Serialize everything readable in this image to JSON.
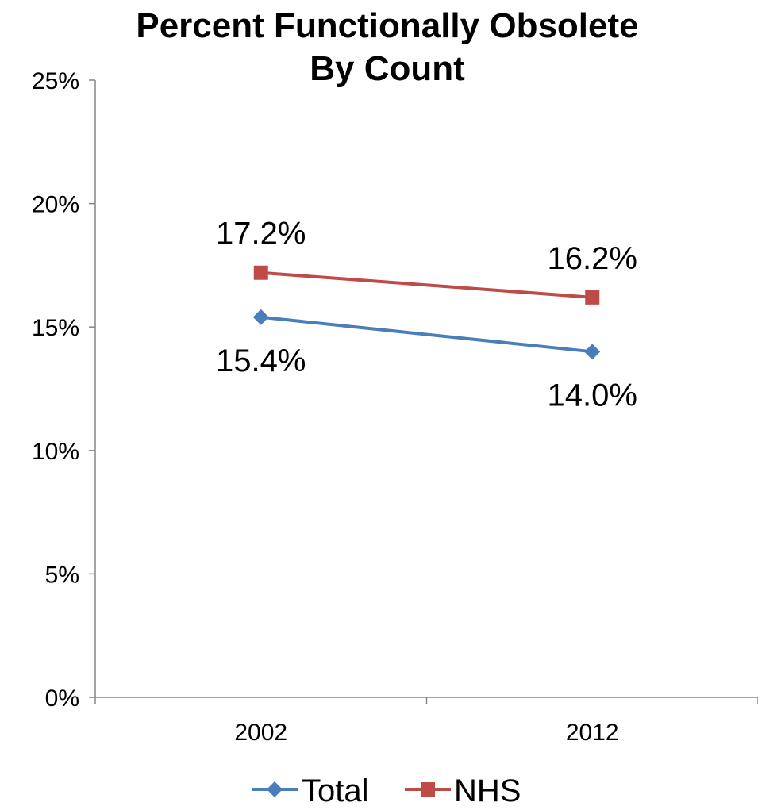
{
  "chart_data": {
    "type": "line",
    "title": [
      "Percent Functionally Obsolete",
      "By Count"
    ],
    "categories": [
      "2002",
      "2012"
    ],
    "ylim": [
      0,
      25
    ],
    "yticks": [
      0,
      5,
      10,
      15,
      20,
      25
    ],
    "ytick_labels": [
      "0%",
      "5%",
      "10%",
      "15%",
      "20%",
      "25%"
    ],
    "grid": false,
    "legend_position": "bottom",
    "series": [
      {
        "name": "Total",
        "values": [
          15.4,
          14.0
        ],
        "labels": [
          "15.4%",
          "14.0%"
        ],
        "color": "#4a7ebb",
        "marker": "diamond",
        "label_position": "below"
      },
      {
        "name": "NHS",
        "values": [
          17.2,
          16.2
        ],
        "labels": [
          "17.2%",
          "16.2%"
        ],
        "color": "#be4b48",
        "marker": "square",
        "label_position": "above"
      }
    ]
  }
}
